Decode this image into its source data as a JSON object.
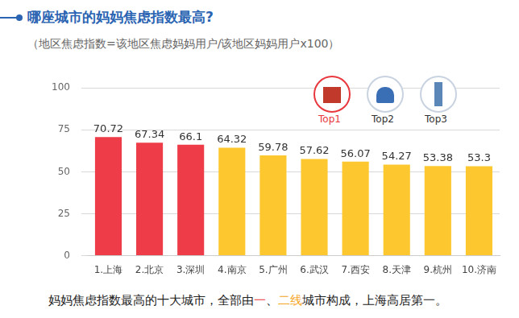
{
  "chart_data": {
    "type": "bar",
    "title": "哪座城市的妈妈焦虑指数最高?",
    "subtitle": "（地区焦虑指数=该地区焦虑妈妈用户/该地区妈妈用户x100）",
    "categories": [
      "1.上海",
      "2.北京",
      "3.深圳",
      "4.南京",
      "5.广州",
      "6.武汉",
      "7.西安",
      "8.天津",
      "9.杭州",
      "10.济南"
    ],
    "values": [
      70.72,
      67.34,
      66.1,
      64.32,
      59.78,
      57.62,
      56.07,
      54.27,
      53.38,
      53.3
    ],
    "colors": [
      "#ee3d48",
      "#ee3d48",
      "#ee3d48",
      "#fdc82f",
      "#fdc82f",
      "#fdc82f",
      "#fdc82f",
      "#fdc82f",
      "#fdc82f",
      "#fdc82f"
    ],
    "ylim": [
      0,
      100
    ],
    "yticks": [
      0,
      25,
      50,
      75,
      100
    ],
    "grid": true,
    "data_labels": true,
    "top_labels": [
      "Top1",
      "Top2",
      "Top3"
    ],
    "footnote": [
      {
        "text": "妈妈焦虑指数最高的十大城市，全部由"
      },
      {
        "text": "一",
        "color": "#e8383d"
      },
      {
        "text": "、"
      },
      {
        "text": "二线",
        "color": "#f5a623"
      },
      {
        "text": "城市构成，上海高居第一。"
      }
    ]
  }
}
